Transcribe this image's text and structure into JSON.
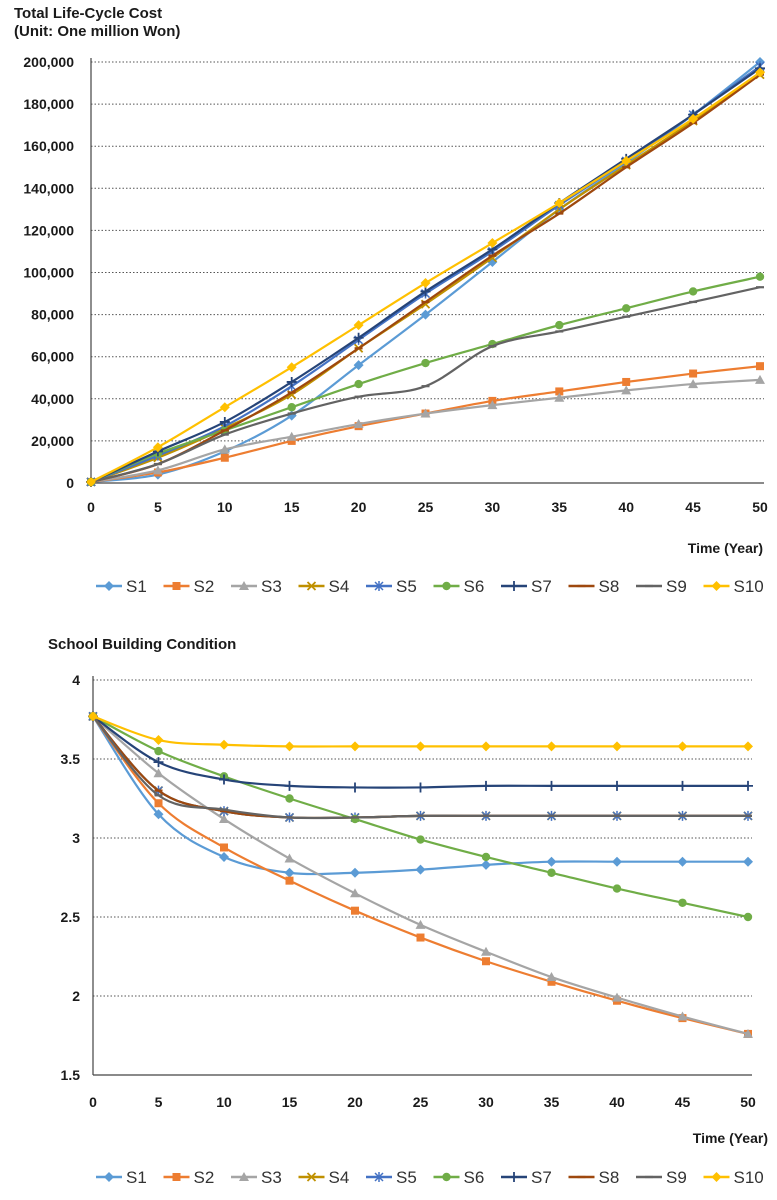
{
  "colors": {
    "S1": "#5B9BD5",
    "S2": "#ED7D31",
    "S3": "#A5A5A5",
    "S4": "#BF9000",
    "S5": "#4472C4",
    "S6": "#70AD47",
    "S7": "#264478",
    "S8": "#9E480E",
    "S9": "#636363",
    "S10": "#FFC000"
  },
  "chart_data": [
    {
      "type": "line",
      "title": "Total Life-Cycle Cost",
      "subtitle": "(Unit: One million Won)",
      "xlabel": "Time (Year)",
      "ylabel": "",
      "grid": true,
      "legend": "bottom",
      "xlim": [
        0,
        50
      ],
      "ylim": [
        0,
        200000
      ],
      "x_ticks": [
        "0",
        "5",
        "10",
        "15",
        "20",
        "25",
        "30",
        "35",
        "40",
        "45",
        "50"
      ],
      "y_ticks": [
        "0",
        "20,000",
        "40,000",
        "60,000",
        "80,000",
        "100,000",
        "120,000",
        "140,000",
        "160,000",
        "180,000",
        "200,000"
      ],
      "x": [
        0,
        5,
        10,
        15,
        20,
        25,
        30,
        35,
        40,
        45,
        50
      ],
      "series": [
        {
          "name": "S1",
          "marker": "diamond",
          "values": [
            500,
            4000,
            15000,
            32000,
            56000,
            80000,
            105000,
            130000,
            152000,
            175000,
            200000
          ]
        },
        {
          "name": "S2",
          "marker": "square",
          "values": [
            500,
            5000,
            12000,
            20000,
            27000,
            33000,
            39000,
            43500,
            48000,
            52000,
            55500
          ]
        },
        {
          "name": "S3",
          "marker": "triangle",
          "values": [
            500,
            6000,
            16000,
            22000,
            28000,
            33000,
            37000,
            40500,
            44000,
            47000,
            49000
          ]
        },
        {
          "name": "S4",
          "marker": "x",
          "values": [
            500,
            12000,
            26000,
            42000,
            64000,
            85000,
            107000,
            130000,
            151000,
            172000,
            194000
          ]
        },
        {
          "name": "S5",
          "marker": "star",
          "values": [
            500,
            13000,
            27000,
            46000,
            68000,
            90000,
            110000,
            132000,
            153000,
            175000,
            198000
          ]
        },
        {
          "name": "S6",
          "marker": "circle",
          "values": [
            500,
            14000,
            25000,
            36000,
            47000,
            57000,
            66000,
            75000,
            83000,
            91000,
            98000
          ]
        },
        {
          "name": "S7",
          "marker": "plus",
          "values": [
            500,
            15000,
            29000,
            48000,
            69000,
            91000,
            111000,
            133000,
            154000,
            175000,
            197000
          ]
        },
        {
          "name": "S8",
          "marker": "dash",
          "values": [
            500,
            9000,
            25000,
            43000,
            64000,
            86000,
            108000,
            128000,
            150000,
            171000,
            194000
          ]
        },
        {
          "name": "S9",
          "marker": "dash",
          "values": [
            500,
            9000,
            23000,
            33000,
            41000,
            46000,
            65000,
            72000,
            79000,
            86000,
            93000
          ]
        },
        {
          "name": "S10",
          "marker": "diamond",
          "values": [
            500,
            17000,
            36000,
            55000,
            75000,
            95000,
            114000,
            133000,
            153000,
            173000,
            195000
          ]
        }
      ]
    },
    {
      "type": "line",
      "title": "School Building Condition",
      "xlabel": "Time (Year)",
      "ylabel": "",
      "grid": true,
      "legend": "bottom",
      "xlim": [
        0,
        50
      ],
      "ylim": [
        1.5,
        4
      ],
      "x_ticks": [
        "0",
        "5",
        "10",
        "15",
        "20",
        "25",
        "30",
        "35",
        "40",
        "45",
        "50"
      ],
      "y_ticks": [
        "1.5",
        "2",
        "2.5",
        "3",
        "3.5",
        "4"
      ],
      "x": [
        0,
        5,
        10,
        15,
        20,
        25,
        30,
        35,
        40,
        45,
        50
      ],
      "series": [
        {
          "name": "S1",
          "marker": "diamond",
          "values": [
            3.77,
            3.15,
            2.88,
            2.78,
            2.78,
            2.8,
            2.83,
            2.85,
            2.85,
            2.85,
            2.85
          ]
        },
        {
          "name": "S2",
          "marker": "square",
          "values": [
            3.77,
            3.22,
            2.94,
            2.73,
            2.54,
            2.37,
            2.22,
            2.09,
            1.97,
            1.86,
            1.76
          ]
        },
        {
          "name": "S3",
          "marker": "triangle",
          "values": [
            3.77,
            3.41,
            3.12,
            2.87,
            2.65,
            2.45,
            2.28,
            2.12,
            1.99,
            1.87,
            1.76
          ]
        },
        {
          "name": "S4",
          "marker": "x",
          "values": [
            3.77,
            3.3,
            3.17,
            3.13,
            3.13,
            3.14,
            3.14,
            3.14,
            3.14,
            3.14,
            3.14
          ]
        },
        {
          "name": "S5",
          "marker": "star",
          "values": [
            3.77,
            3.3,
            3.17,
            3.13,
            3.13,
            3.14,
            3.14,
            3.14,
            3.14,
            3.14,
            3.14
          ]
        },
        {
          "name": "S6",
          "marker": "circle",
          "values": [
            3.77,
            3.55,
            3.39,
            3.25,
            3.12,
            2.99,
            2.88,
            2.78,
            2.68,
            2.59,
            2.5
          ]
        },
        {
          "name": "S7",
          "marker": "plus",
          "values": [
            3.77,
            3.48,
            3.37,
            3.33,
            3.32,
            3.32,
            3.33,
            3.33,
            3.33,
            3.33,
            3.33
          ]
        },
        {
          "name": "S8",
          "marker": "dash",
          "values": [
            3.77,
            3.3,
            3.17,
            3.13,
            3.13,
            3.14,
            3.14,
            3.14,
            3.14,
            3.14,
            3.14
          ]
        },
        {
          "name": "S9",
          "marker": "dash",
          "values": [
            3.77,
            3.27,
            3.18,
            3.13,
            3.13,
            3.14,
            3.14,
            3.14,
            3.14,
            3.14,
            3.14
          ]
        },
        {
          "name": "S10",
          "marker": "diamond",
          "values": [
            3.77,
            3.62,
            3.59,
            3.58,
            3.58,
            3.58,
            3.58,
            3.58,
            3.58,
            3.58,
            3.58
          ]
        }
      ]
    }
  ]
}
